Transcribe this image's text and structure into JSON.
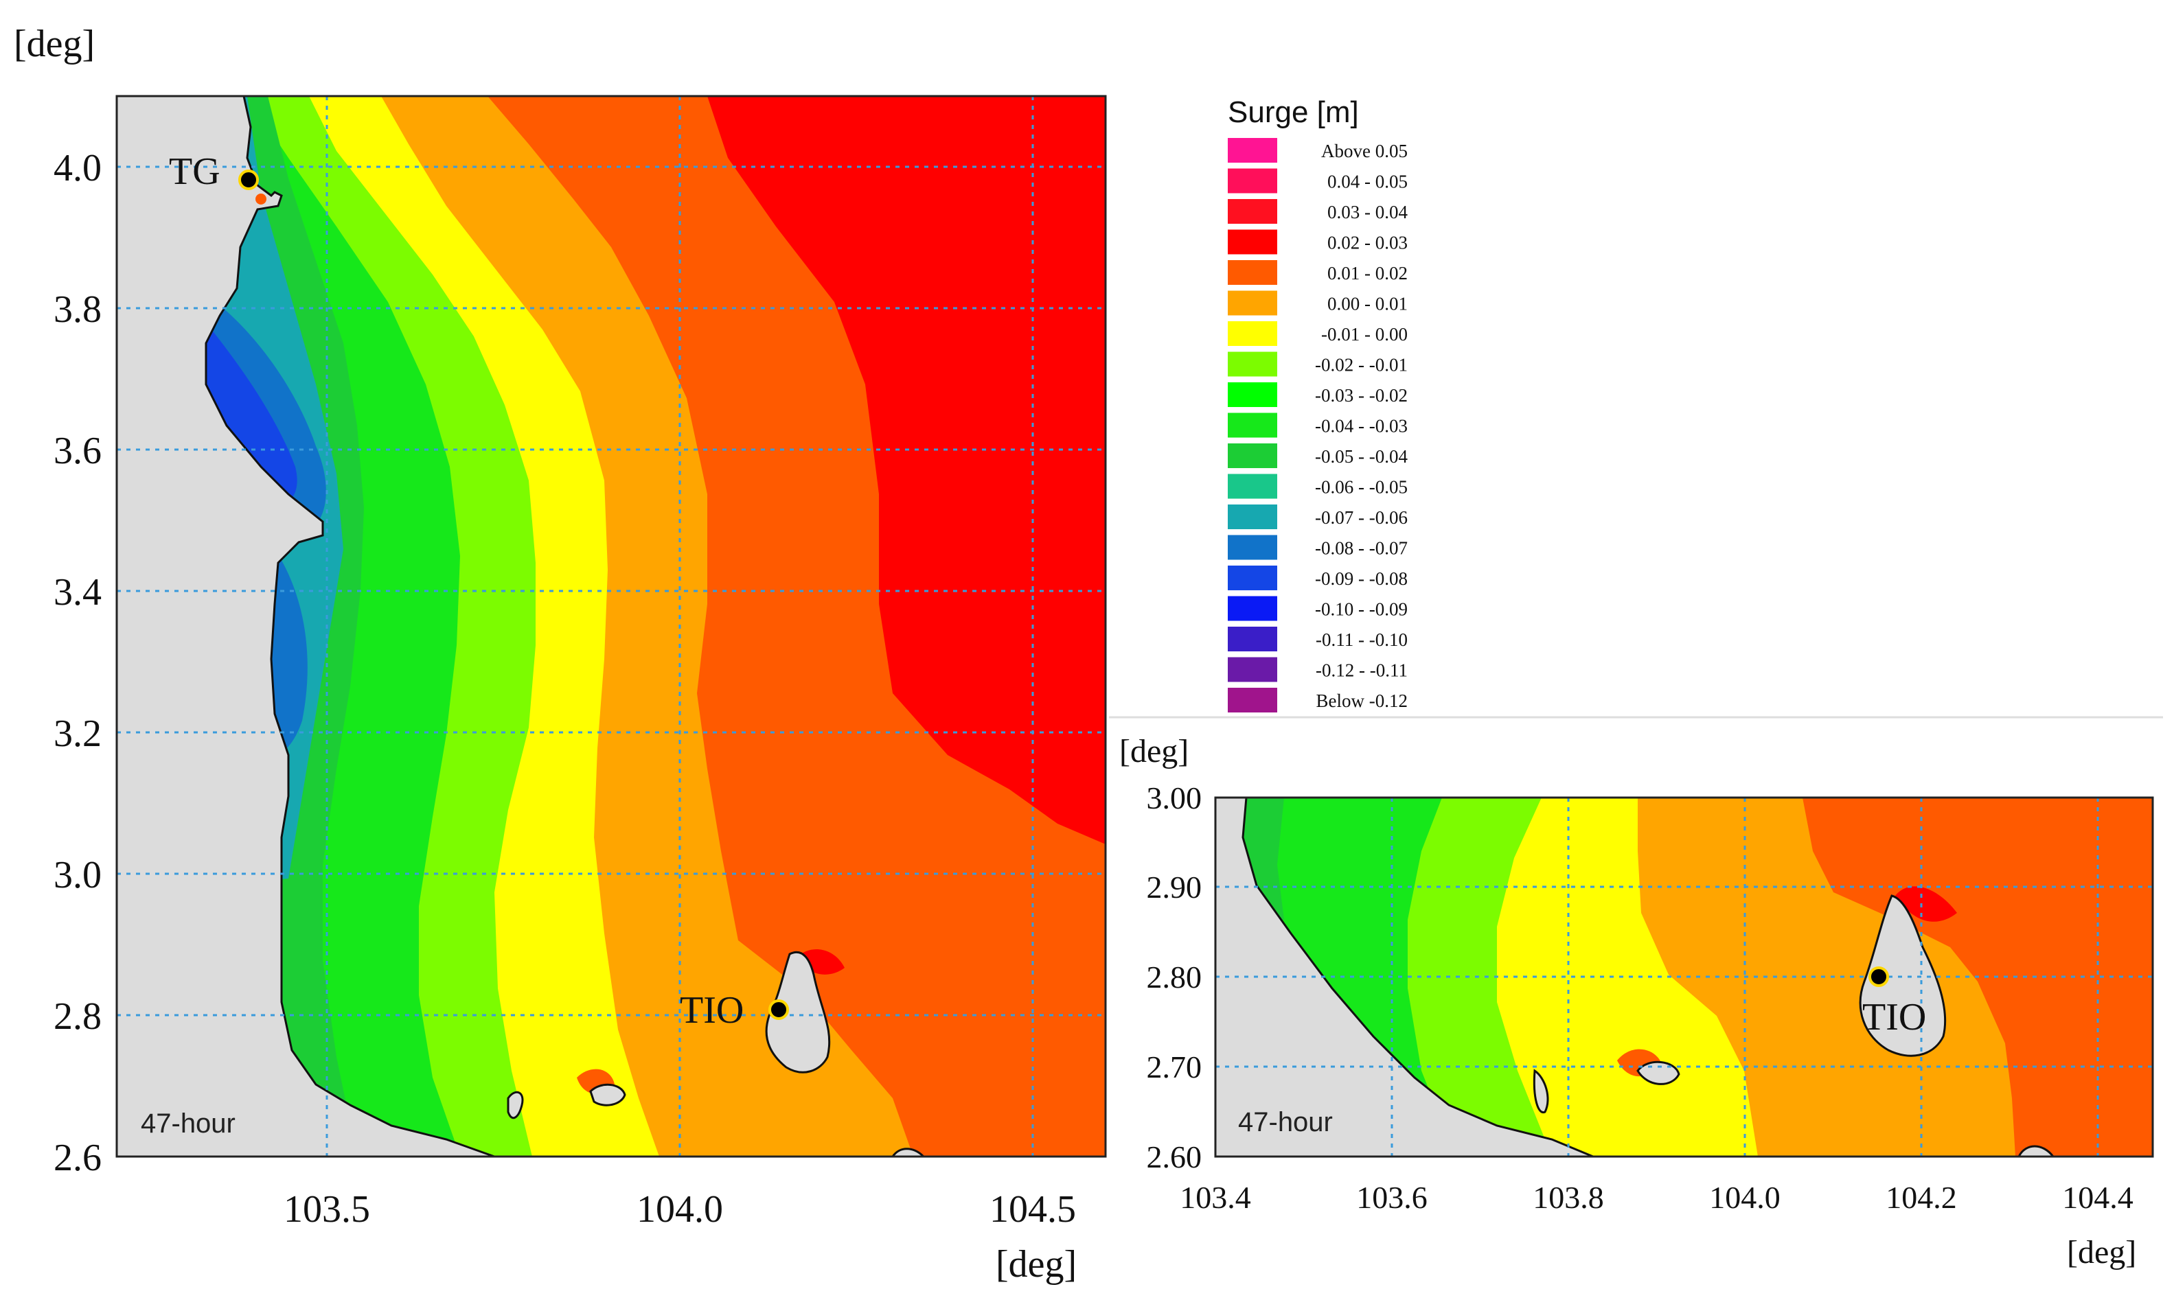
{
  "left_map": {
    "y_unit_label": "[deg]",
    "x_unit_label": "[deg]",
    "y_ticks": [
      "4.0",
      "3.8",
      "3.6",
      "3.4",
      "3.2",
      "3.0",
      "2.8",
      "2.6"
    ],
    "x_ticks": [
      "103.5",
      "104.0",
      "104.5"
    ],
    "time_stamp": "47-hour",
    "stations": [
      {
        "name": "TG",
        "lon": 103.38,
        "lat": 3.98
      },
      {
        "name": "TIO",
        "lon": 104.14,
        "lat": 2.81
      }
    ]
  },
  "right_map": {
    "y_unit_label": "[deg]",
    "x_unit_label": "[deg]",
    "y_ticks": [
      "3.00",
      "2.90",
      "2.80",
      "2.70",
      "2.60"
    ],
    "x_ticks": [
      "103.4",
      "103.6",
      "103.8",
      "104.0",
      "104.2",
      "104.4"
    ],
    "time_stamp": "47-hour",
    "stations": [
      {
        "name": "TIO",
        "lon": 104.15,
        "lat": 2.8
      }
    ]
  },
  "legend": {
    "title": "Surge [m]",
    "entries": [
      {
        "label": "Above  0.05",
        "color": "#ff1493"
      },
      {
        "label": "0.04 -  0.05",
        "color": "#ff0f5a"
      },
      {
        "label": "0.03 -  0.04",
        "color": "#ff1020"
      },
      {
        "label": "0.02 -  0.03",
        "color": "#ff0000"
      },
      {
        "label": "0.01 -  0.02",
        "color": "#ff5a00"
      },
      {
        "label": "0.00 -  0.01",
        "color": "#ffa500"
      },
      {
        "label": "-0.01 -  0.00",
        "color": "#ffff00"
      },
      {
        "label": "-0.02 - -0.01",
        "color": "#7cfc00"
      },
      {
        "label": "-0.03 - -0.02",
        "color": "#00ff00"
      },
      {
        "label": "-0.04 - -0.03",
        "color": "#16e81a"
      },
      {
        "label": "-0.05 - -0.04",
        "color": "#1ccd35"
      },
      {
        "label": "-0.06 - -0.05",
        "color": "#19c78a"
      },
      {
        "label": "-0.07 - -0.06",
        "color": "#17a8b0"
      },
      {
        "label": "-0.08 - -0.07",
        "color": "#1173c9"
      },
      {
        "label": "-0.09 - -0.08",
        "color": "#1446e6"
      },
      {
        "label": "-0.10 - -0.09",
        "color": "#0a1af5"
      },
      {
        "label": "-0.11 - -0.10",
        "color": "#3a1ec8"
      },
      {
        "label": "-0.12 - -0.11",
        "color": "#6a1aa8"
      },
      {
        "label": "Below  -0.12",
        "color": "#a0148c"
      }
    ]
  },
  "colors": {
    "land": "#dcdcdc",
    "grid": "#3a9bdc"
  }
}
